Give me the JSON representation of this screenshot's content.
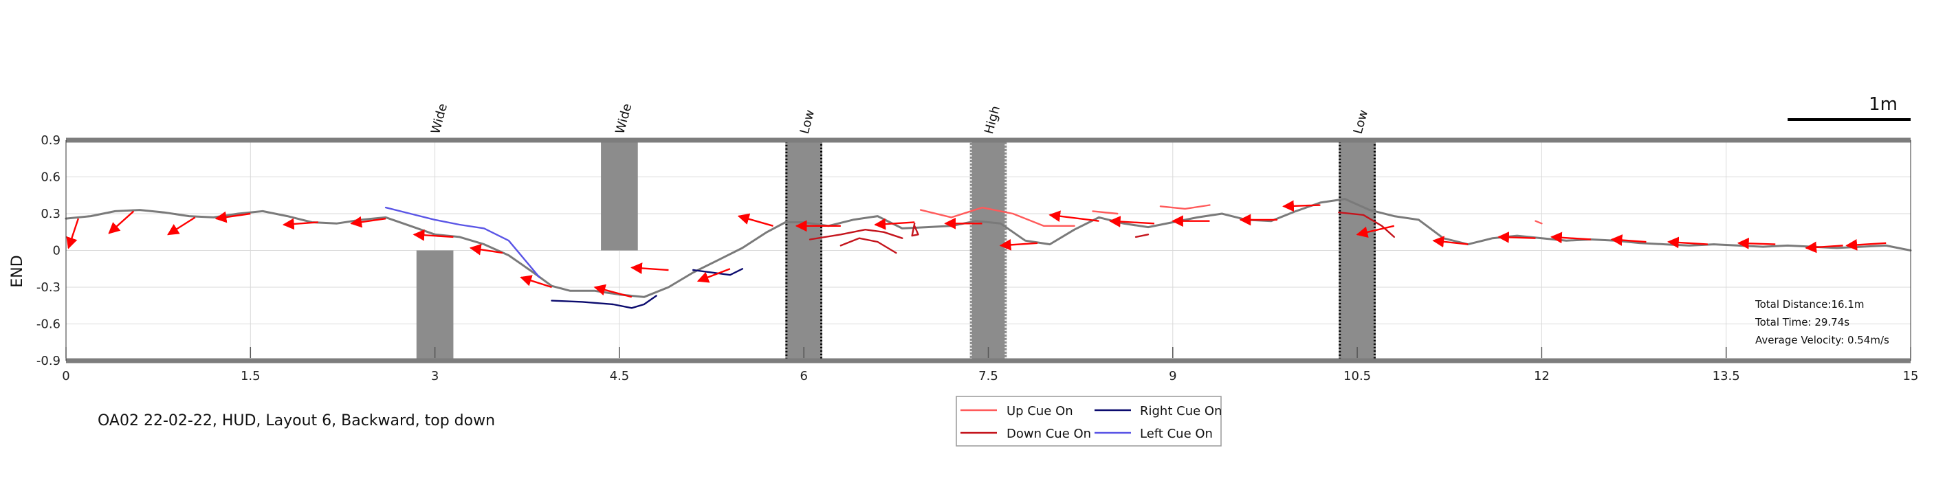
{
  "caption": "OA02 22-02-22, HUD, Layout 6, Backward, top down",
  "scale_bar": {
    "label": "1m",
    "length_m": 1
  },
  "stats": {
    "distance": "Total Distance:16.1m",
    "time": "Total Time: 29.74s",
    "velocity": "Average Velocity: 0.54m/s"
  },
  "legend": [
    {
      "label": "Up Cue On",
      "color": "#ff5a5a"
    },
    {
      "label": "Right Cue On",
      "color": "#0b0b6e"
    },
    {
      "label": "Down Cue On",
      "color": "#c4141c"
    },
    {
      "label": "Left Cue On",
      "color": "#5a55e6"
    }
  ],
  "colors": {
    "path": "#7a7a7a",
    "arrow": "#ff0000",
    "obstacle": "#8c8c8c",
    "border": "#7d7d7d"
  },
  "chart_data": {
    "type": "line",
    "xlim": [
      0,
      15
    ],
    "ylim": [
      -0.9,
      0.9
    ],
    "ylabel": "END",
    "xticks": [
      0,
      1.5,
      3,
      4.5,
      6,
      7.5,
      9,
      10.5,
      12,
      13.5,
      15
    ],
    "xtick_labels": [
      "0",
      "1.5",
      "3",
      "4.5",
      "6",
      "7.5",
      "9",
      "10.5",
      "12",
      "13.5",
      "15"
    ],
    "yticks": [
      -0.9,
      -0.6,
      -0.3,
      0,
      0.3,
      0.6,
      0.9
    ],
    "ytick_labels": [
      "-0.9",
      "-0.6",
      "-0.3",
      "0",
      "0.3",
      "0.6",
      "0.9"
    ],
    "grid": true,
    "obstacles": [
      {
        "label": "Wide",
        "x_range": [
          2.85,
          3.15
        ],
        "y_range": [
          -0.9,
          0
        ],
        "style": "solid"
      },
      {
        "label": "Wide",
        "x_range": [
          4.35,
          4.65
        ],
        "y_range": [
          0,
          0.9
        ],
        "style": "solid"
      },
      {
        "label": "Low",
        "x_range": [
          5.85,
          6.15
        ],
        "y_range": [
          -0.9,
          0.9
        ],
        "style": "dotted-black"
      },
      {
        "label": "High",
        "x_range": [
          7.35,
          7.65
        ],
        "y_range": [
          -0.9,
          0.9
        ],
        "style": "dotted-white"
      },
      {
        "label": "Low",
        "x_range": [
          10.35,
          10.65
        ],
        "y_range": [
          -0.9,
          0.9
        ],
        "style": "dotted-black"
      }
    ],
    "series": [
      {
        "kind": "path",
        "x": [
          0.0,
          0.2,
          0.4,
          0.6,
          0.8,
          1.0,
          1.2,
          1.4,
          1.6,
          1.8,
          2.0,
          2.2,
          2.4,
          2.6,
          2.8,
          3.0,
          3.2,
          3.4,
          3.6,
          3.8,
          3.95,
          4.1,
          4.3,
          4.5,
          4.7,
          4.9,
          5.1,
          5.3,
          5.5,
          5.7,
          5.85,
          6.0,
          6.2,
          6.4,
          6.6,
          6.8,
          7.0,
          7.2,
          7.4,
          7.6,
          7.8,
          8.0,
          8.2,
          8.4,
          8.6,
          8.8,
          9.0,
          9.2,
          9.4,
          9.6,
          9.8,
          10.0,
          10.2,
          10.4,
          10.6,
          10.8,
          11.0,
          11.2,
          11.4,
          11.6,
          11.8,
          12.0,
          12.2,
          12.4,
          12.6,
          12.8,
          13.0,
          13.2,
          13.4,
          13.6,
          13.8,
          14.0,
          14.2,
          14.4,
          14.6,
          14.8,
          15.0
        ],
        "y": [
          0.26,
          0.28,
          0.32,
          0.33,
          0.31,
          0.28,
          0.27,
          0.3,
          0.32,
          0.28,
          0.23,
          0.22,
          0.25,
          0.27,
          0.2,
          0.13,
          0.11,
          0.05,
          -0.04,
          -0.18,
          -0.29,
          -0.33,
          -0.33,
          -0.36,
          -0.38,
          -0.3,
          -0.18,
          -0.08,
          0.02,
          0.15,
          0.23,
          0.23,
          0.2,
          0.25,
          0.28,
          0.18,
          0.19,
          0.2,
          0.24,
          0.22,
          0.08,
          0.05,
          0.17,
          0.27,
          0.22,
          0.19,
          0.23,
          0.27,
          0.3,
          0.25,
          0.24,
          0.32,
          0.39,
          0.42,
          0.33,
          0.28,
          0.25,
          0.1,
          0.05,
          0.1,
          0.12,
          0.1,
          0.08,
          0.09,
          0.08,
          0.06,
          0.05,
          0.04,
          0.05,
          0.04,
          0.03,
          0.04,
          0.03,
          0.02,
          0.03,
          0.04,
          0.0
        ]
      },
      {
        "kind": "cue",
        "name": "Left Cue On",
        "x": [
          2.6,
          2.8,
          3.0,
          3.2,
          3.4,
          3.6,
          3.75,
          3.85
        ],
        "y": [
          0.35,
          0.3,
          0.25,
          0.21,
          0.18,
          0.08,
          -0.1,
          -0.22
        ]
      },
      {
        "kind": "cue",
        "name": "Right Cue On",
        "x": [
          3.95,
          4.2,
          4.45,
          4.6,
          4.7,
          4.8
        ],
        "y": [
          -0.41,
          -0.42,
          -0.44,
          -0.47,
          -0.44,
          -0.37
        ]
      },
      {
        "kind": "cue",
        "name": "Right Cue On",
        "x": [
          5.1,
          5.25,
          5.4,
          5.5
        ],
        "y": [
          -0.16,
          -0.18,
          -0.2,
          -0.15
        ]
      },
      {
        "kind": "cue",
        "name": "Down Cue On",
        "x": [
          6.05,
          6.3,
          6.5,
          6.65,
          6.8
        ],
        "y": [
          0.09,
          0.13,
          0.17,
          0.15,
          0.1
        ]
      },
      {
        "kind": "cue",
        "name": "Down Cue On",
        "x": [
          6.3,
          6.45,
          6.6,
          6.75
        ],
        "y": [
          0.04,
          0.1,
          0.07,
          -0.02
        ]
      },
      {
        "kind": "cue",
        "name": "Down Cue On",
        "x": [
          6.9,
          6.93,
          6.88,
          6.9
        ],
        "y": [
          0.2,
          0.13,
          0.12,
          0.22
        ]
      },
      {
        "kind": "cue",
        "name": "Up Cue On",
        "x": [
          6.95,
          7.2,
          7.45,
          7.7,
          7.95,
          8.2
        ],
        "y": [
          0.33,
          0.27,
          0.35,
          0.3,
          0.2,
          0.2
        ]
      },
      {
        "kind": "cue",
        "name": "Up Cue On",
        "x": [
          8.35,
          8.55
        ],
        "y": [
          0.32,
          0.3
        ]
      },
      {
        "kind": "cue",
        "name": "Down Cue On",
        "x": [
          8.7,
          8.8
        ],
        "y": [
          0.11,
          0.13
        ]
      },
      {
        "kind": "cue",
        "name": "Up Cue On",
        "x": [
          8.9,
          9.1,
          9.3
        ],
        "y": [
          0.36,
          0.34,
          0.37
        ]
      },
      {
        "kind": "cue",
        "name": "Down Cue On",
        "x": [
          10.35,
          10.55,
          10.7,
          10.8
        ],
        "y": [
          0.31,
          0.29,
          0.2,
          0.11
        ]
      },
      {
        "kind": "cue",
        "name": "Up Cue On",
        "x": [
          11.95,
          12.0
        ],
        "y": [
          0.24,
          0.22
        ]
      }
    ],
    "arrows": [
      {
        "x": 0.1,
        "y": 0.26,
        "dx": -0.08,
        "dy": -0.24
      },
      {
        "x": 0.55,
        "y": 0.32,
        "dx": -0.2,
        "dy": -0.18
      },
      {
        "x": 1.05,
        "y": 0.27,
        "dx": -0.22,
        "dy": -0.14
      },
      {
        "x": 1.5,
        "y": 0.3,
        "dx": -0.28,
        "dy": -0.04
      },
      {
        "x": 2.05,
        "y": 0.23,
        "dx": -0.28,
        "dy": -0.02
      },
      {
        "x": 2.6,
        "y": 0.26,
        "dx": -0.28,
        "dy": -0.04
      },
      {
        "x": 3.15,
        "y": 0.11,
        "dx": -0.32,
        "dy": 0.02
      },
      {
        "x": 3.55,
        "y": -0.02,
        "dx": -0.26,
        "dy": 0.04
      },
      {
        "x": 3.95,
        "y": -0.3,
        "dx": -0.25,
        "dy": 0.08
      },
      {
        "x": 4.6,
        "y": -0.38,
        "dx": -0.3,
        "dy": 0.08
      },
      {
        "x": 4.9,
        "y": -0.16,
        "dx": -0.3,
        "dy": 0.02
      },
      {
        "x": 5.4,
        "y": -0.15,
        "dx": -0.26,
        "dy": -0.1
      },
      {
        "x": 5.75,
        "y": 0.2,
        "dx": -0.28,
        "dy": 0.08
      },
      {
        "x": 6.3,
        "y": 0.2,
        "dx": -0.36,
        "dy": 0.0
      },
      {
        "x": 6.9,
        "y": 0.23,
        "dx": -0.32,
        "dy": -0.02
      },
      {
        "x": 7.45,
        "y": 0.22,
        "dx": -0.3,
        "dy": 0.0
      },
      {
        "x": 7.9,
        "y": 0.06,
        "dx": -0.3,
        "dy": -0.02
      },
      {
        "x": 8.4,
        "y": 0.24,
        "dx": -0.4,
        "dy": 0.05
      },
      {
        "x": 8.85,
        "y": 0.22,
        "dx": -0.36,
        "dy": 0.02
      },
      {
        "x": 9.3,
        "y": 0.24,
        "dx": -0.3,
        "dy": 0.0
      },
      {
        "x": 9.85,
        "y": 0.25,
        "dx": -0.3,
        "dy": 0.0
      },
      {
        "x": 10.2,
        "y": 0.37,
        "dx": -0.3,
        "dy": -0.01
      },
      {
        "x": 10.8,
        "y": 0.2,
        "dx": -0.3,
        "dy": -0.07
      },
      {
        "x": 11.4,
        "y": 0.05,
        "dx": -0.28,
        "dy": 0.03
      },
      {
        "x": 11.95,
        "y": 0.1,
        "dx": -0.3,
        "dy": 0.01
      },
      {
        "x": 12.4,
        "y": 0.09,
        "dx": -0.32,
        "dy": 0.02
      },
      {
        "x": 12.85,
        "y": 0.07,
        "dx": -0.28,
        "dy": 0.02
      },
      {
        "x": 13.35,
        "y": 0.05,
        "dx": -0.32,
        "dy": 0.02
      },
      {
        "x": 13.9,
        "y": 0.05,
        "dx": -0.3,
        "dy": 0.01
      },
      {
        "x": 14.45,
        "y": 0.04,
        "dx": -0.3,
        "dy": -0.02
      },
      {
        "x": 14.8,
        "y": 0.06,
        "dx": -0.32,
        "dy": -0.02
      }
    ]
  }
}
